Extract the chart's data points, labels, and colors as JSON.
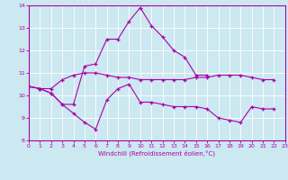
{
  "xlabel": "Windchill (Refroidissement éolien,°C)",
  "xlim": [
    0,
    23
  ],
  "ylim": [
    8,
    14
  ],
  "yticks": [
    8,
    9,
    10,
    11,
    12,
    13,
    14
  ],
  "xticks": [
    0,
    1,
    2,
    3,
    4,
    5,
    6,
    7,
    8,
    9,
    10,
    11,
    12,
    13,
    14,
    15,
    16,
    17,
    18,
    19,
    20,
    21,
    22,
    23
  ],
  "bg_color": "#cce8f0",
  "line_color": "#aa00aa",
  "grid_color": "#ffffff",
  "line1_x": [
    0,
    1,
    2,
    3,
    4,
    5,
    6,
    7,
    8,
    9,
    10,
    11,
    12,
    13,
    14,
    15,
    16,
    17,
    18,
    19,
    20,
    21,
    22
  ],
  "line1_y": [
    10.4,
    10.3,
    10.1,
    9.6,
    9.2,
    8.8,
    8.5,
    9.8,
    10.3,
    10.5,
    9.7,
    9.7,
    9.6,
    9.5,
    9.5,
    9.5,
    9.4,
    9.0,
    8.9,
    8.8,
    9.5,
    9.4,
    9.4
  ],
  "line2_x": [
    0,
    1,
    2,
    3,
    4,
    5,
    6,
    7,
    8,
    9,
    10,
    11,
    12,
    13,
    14,
    15,
    16,
    17,
    18,
    19,
    20,
    21,
    22
  ],
  "line2_y": [
    10.4,
    10.3,
    10.3,
    10.7,
    10.9,
    11.0,
    11.0,
    10.9,
    10.8,
    10.8,
    10.7,
    10.7,
    10.7,
    10.7,
    10.7,
    10.8,
    10.8,
    10.9,
    10.9,
    10.9,
    10.8,
    10.7,
    10.7
  ],
  "line3_x": [
    0,
    1,
    2,
    3,
    4,
    5,
    6,
    7,
    8,
    9,
    10,
    11,
    12,
    13,
    14,
    15,
    16
  ],
  "line3_y": [
    10.4,
    10.3,
    10.1,
    9.6,
    9.6,
    11.3,
    11.4,
    12.5,
    12.5,
    13.3,
    13.9,
    13.1,
    12.6,
    12.0,
    11.7,
    10.9,
    10.9
  ]
}
